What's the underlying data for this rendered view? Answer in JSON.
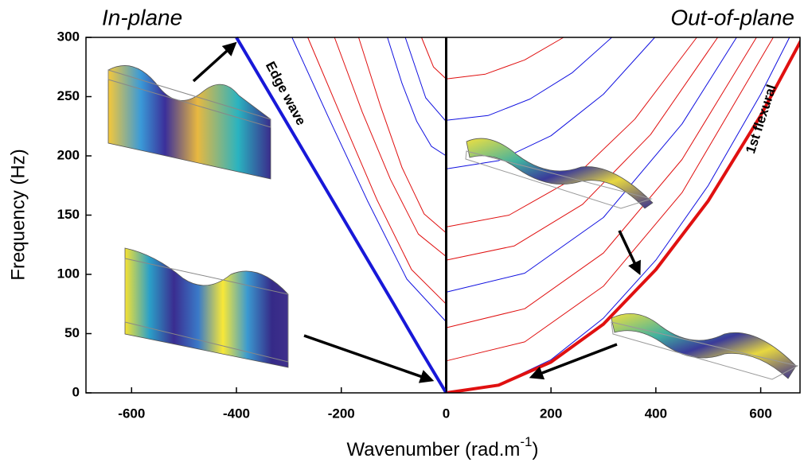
{
  "chart_data": {
    "type": "line",
    "xlabel": "Wavenumber (rad.m",
    "xlabel_sup": "-1",
    "xlabel_end": ")",
    "ylabel": "Frequency (Hz)",
    "annotations": {
      "in_plane": "In-plane",
      "out_of_plane": "Out-of-plane",
      "edge_wave": "Edge wave",
      "flexural": "1st flexural"
    },
    "xlim": [
      -687,
      675
    ],
    "ylim": [
      0,
      300
    ],
    "xticks": [
      -600,
      -400,
      -200,
      0,
      200,
      400,
      600
    ],
    "yticks": [
      0,
      50,
      100,
      150,
      200,
      250,
      300
    ],
    "series": [
      {
        "color": "#1010e0",
        "line_width": 1,
        "x": [
          0,
          -75,
          -150,
          -225,
          -294
        ],
        "y": [
          60,
          96,
          162,
          233,
          300
        ]
      },
      {
        "color": "#e01010",
        "line_width": 1,
        "x": [
          0,
          -66,
          -132,
          -198,
          -264
        ],
        "y": [
          75,
          104,
          163,
          231,
          300
        ]
      },
      {
        "color": "#e01010",
        "line_width": 1,
        "x": [
          0,
          -53,
          -106,
          -160,
          -213
        ],
        "y": [
          115,
          134,
          180,
          237,
          300
        ]
      },
      {
        "color": "#e01010",
        "line_width": 1,
        "x": [
          0,
          -42,
          -84,
          -126,
          -167
        ],
        "y": [
          135,
          151,
          190,
          243,
          300
        ]
      },
      {
        "color": "#1010e0",
        "line_width": 1,
        "x": [
          0,
          -28,
          -56,
          -84,
          -112
        ],
        "y": [
          200,
          208,
          229,
          261,
          300
        ]
      },
      {
        "color": "#1010e0",
        "line_width": 1,
        "x": [
          0,
          -39,
          -78
        ],
        "y": [
          229,
          249,
          300
        ]
      },
      {
        "color": "#e01010",
        "line_width": 1,
        "x": [
          0,
          -24,
          -47
        ],
        "y": [
          265,
          275,
          300
        ]
      },
      {
        "color": "#e01010",
        "line_width": 1,
        "x": [
          0,
          150,
          300,
          450,
          624
        ],
        "y": [
          27,
          43,
          90,
          169,
          300
        ]
      },
      {
        "color": "#e01010",
        "line_width": 1,
        "x": [
          0,
          150,
          300,
          450,
          592
        ],
        "y": [
          55,
          71,
          118,
          197,
          300
        ]
      },
      {
        "color": "#1010e0",
        "line_width": 1,
        "x": [
          0,
          150,
          300,
          450,
          554
        ],
        "y": [
          85,
          101,
          148,
          227,
          300
        ]
      },
      {
        "color": "#e01010",
        "line_width": 1,
        "x": [
          0,
          130,
          260,
          390,
          518
        ],
        "y": [
          112,
          124,
          159,
          218,
          300
        ]
      },
      {
        "color": "#e01010",
        "line_width": 1,
        "x": [
          0,
          120,
          240,
          360,
          478
        ],
        "y": [
          140,
          150,
          180,
          231,
          300
        ]
      },
      {
        "color": "#1010e0",
        "line_width": 1,
        "x": [
          0,
          100,
          200,
          300,
          398
        ],
        "y": [
          189,
          196,
          217,
          252,
          300
        ]
      },
      {
        "color": "#1010e0",
        "line_width": 1,
        "x": [
          0,
          80,
          160,
          240,
          316
        ],
        "y": [
          230,
          234,
          248,
          270,
          300
        ]
      },
      {
        "color": "#e01010",
        "line_width": 1,
        "x": [
          0,
          75,
          150,
          224
        ],
        "y": [
          265,
          269,
          281,
          300
        ]
      },
      {
        "color": "#1010e0",
        "line_width": 1,
        "x": [
          0,
          100,
          200,
          300,
          400,
          500,
          600,
          655
        ],
        "y": [
          0,
          7,
          28,
          63,
          112,
          175,
          252,
          300
        ]
      },
      {
        "color": "#000000",
        "line_width": 3,
        "x": [
          0,
          0
        ],
        "y": [
          0,
          300
        ]
      },
      {
        "color": "#e01010",
        "line_width": 4,
        "x": [
          0,
          100,
          200,
          300,
          400,
          500,
          600,
          680
        ],
        "y": [
          0,
          6.5,
          26,
          58,
          104,
          162,
          234,
          300
        ]
      },
      {
        "color": "#1818d8",
        "line_width": 4,
        "x": [
          0,
          -50,
          -100,
          -200,
          -300,
          -400
        ],
        "y": [
          0,
          37,
          75,
          150,
          225,
          300
        ]
      }
    ]
  }
}
